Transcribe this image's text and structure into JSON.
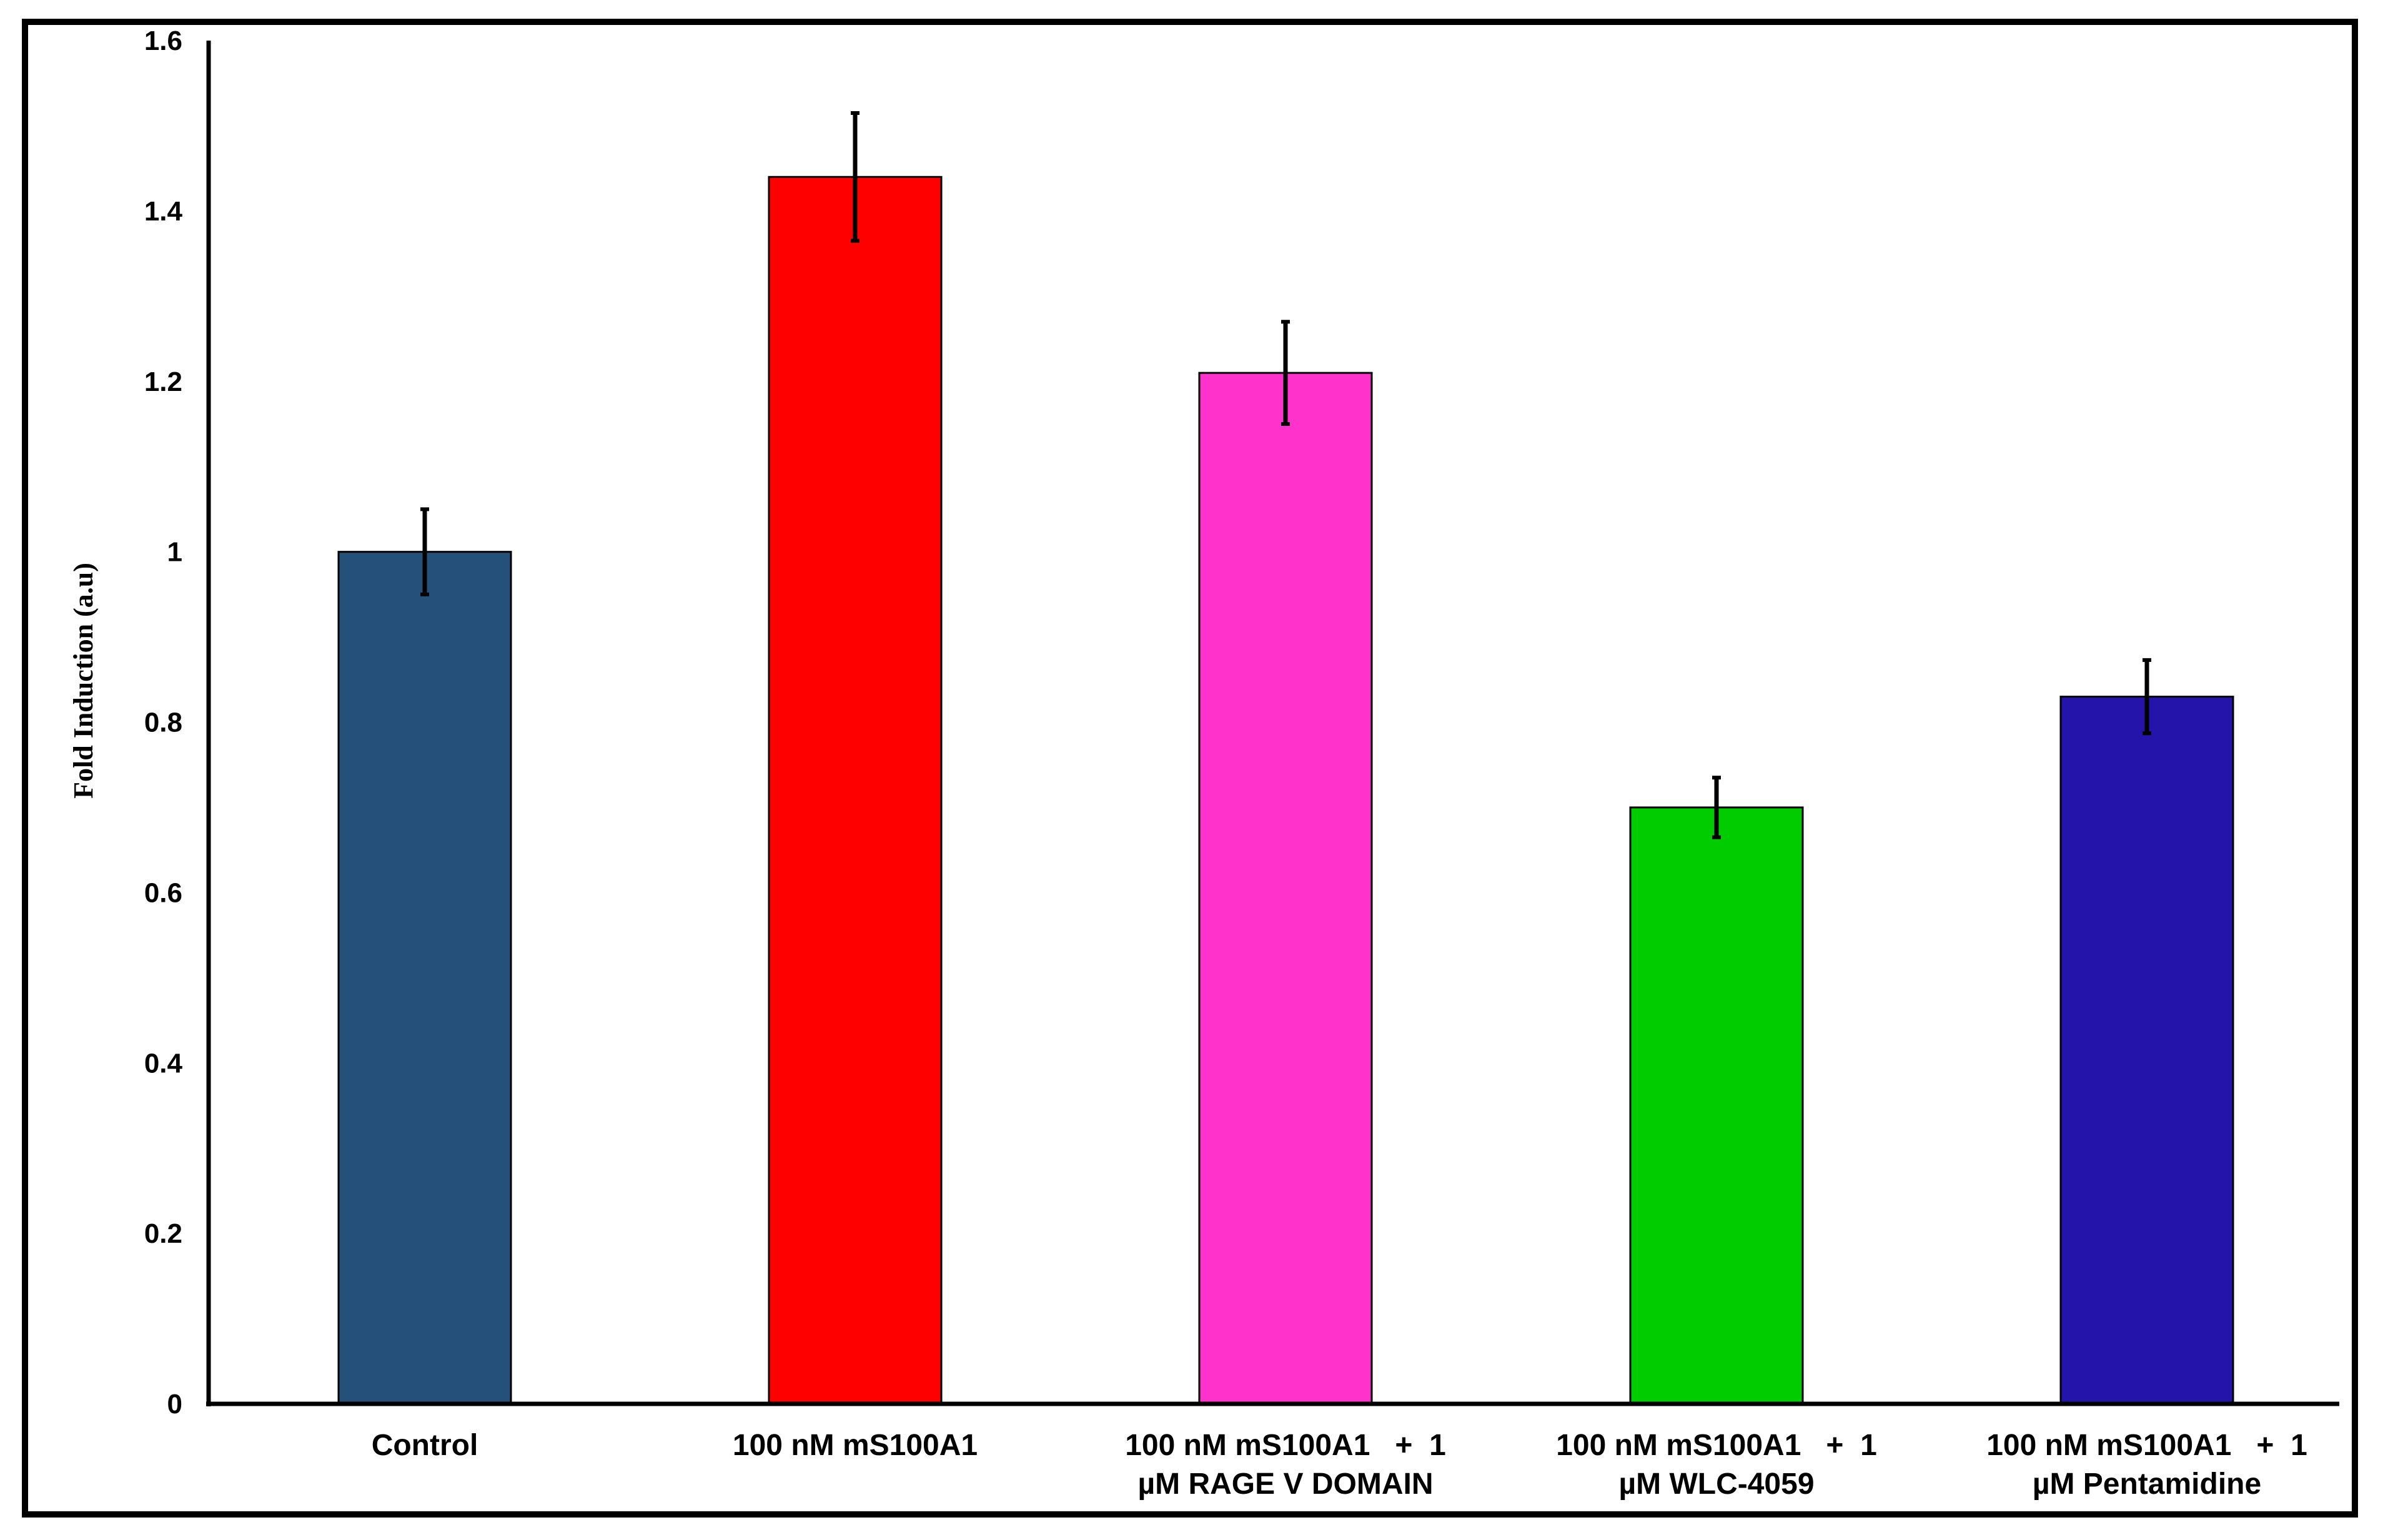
{
  "chart_data": {
    "type": "bar",
    "title": "",
    "xlabel": "",
    "ylabel": "Fold Induction (a.u)",
    "ylim": [
      0,
      1.6
    ],
    "yticks": [
      "0",
      "0.2",
      "0.4",
      "0.6",
      "0.8",
      "1",
      "1.2",
      "1.4",
      "1.6"
    ],
    "grid": false,
    "categories": [
      [
        "Control"
      ],
      [
        "100 nM mS100A1"
      ],
      [
        "100 nM mS100A1   +  1",
        "µM RAGE V DOMAIN"
      ],
      [
        "100 nM mS100A1   +  1",
        "µM WLC-4059"
      ],
      [
        "100 nM mS100A1   +  1",
        "µM Pentamidine"
      ]
    ],
    "values": [
      1.0,
      1.44,
      1.21,
      0.7,
      0.83
    ],
    "errors": [
      0.05,
      0.075,
      0.06,
      0.035,
      0.043
    ],
    "colors": [
      "#24507A",
      "#FF0000",
      "#FF33CC",
      "#00CC00",
      "#2414AA"
    ]
  }
}
